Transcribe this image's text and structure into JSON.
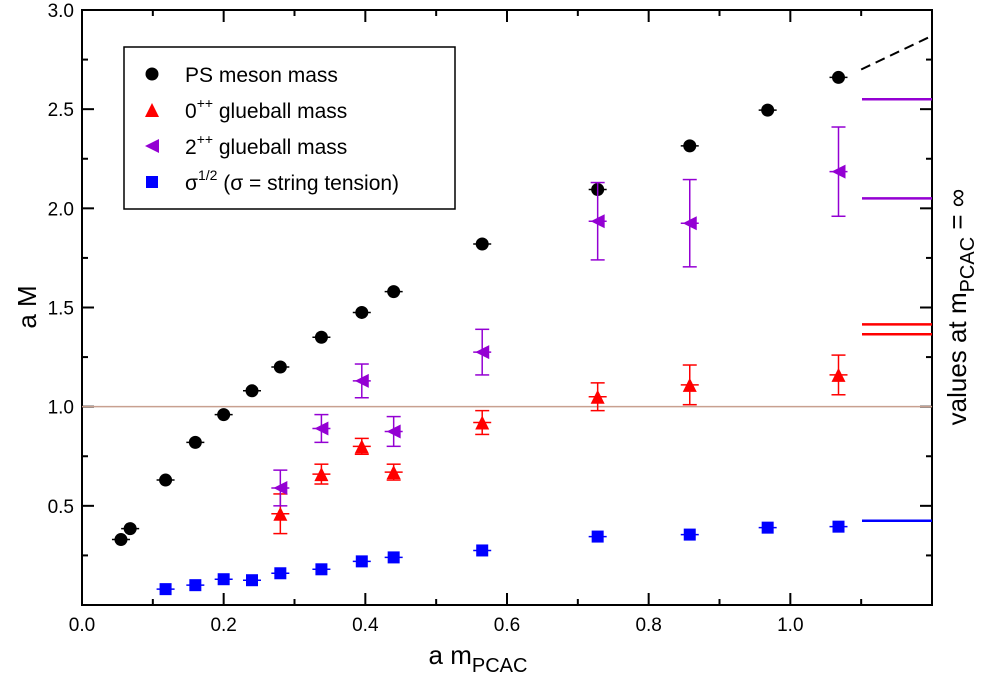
{
  "chart_data": {
    "type": "scatter",
    "xlabel": {
      "main": "a m",
      "sub": "PCAC"
    },
    "ylabel": "a M",
    "right_label": {
      "pre": "values at m",
      "sub": "PCAC",
      "post": " = ∞"
    },
    "xlim": [
      0.0,
      1.2
    ],
    "ylim": [
      0.0,
      3.0
    ],
    "x_ticks": [
      "0.0",
      "0.2",
      "0.4",
      "0.6",
      "0.8",
      "1.0"
    ],
    "y_ticks": [
      "0.5",
      "1.0",
      "1.5",
      "2.0",
      "2.5",
      "3.0"
    ],
    "reference_line_y": 1.0,
    "series": [
      {
        "name": "PS meson mass",
        "marker": "circle",
        "color": "#000000",
        "points": [
          {
            "x": 0.055,
            "y": 0.33
          },
          {
            "x": 0.068,
            "y": 0.385
          },
          {
            "x": 0.118,
            "y": 0.63
          },
          {
            "x": 0.16,
            "y": 0.82
          },
          {
            "x": 0.2,
            "y": 0.96
          },
          {
            "x": 0.24,
            "y": 1.08
          },
          {
            "x": 0.28,
            "y": 1.2
          },
          {
            "x": 0.338,
            "y": 1.35
          },
          {
            "x": 0.395,
            "y": 1.475
          },
          {
            "x": 0.44,
            "y": 1.58
          },
          {
            "x": 0.565,
            "y": 1.82
          },
          {
            "x": 0.728,
            "y": 2.095
          },
          {
            "x": 0.858,
            "y": 2.315
          },
          {
            "x": 0.968,
            "y": 2.495
          },
          {
            "x": 1.068,
            "y": 2.66
          }
        ],
        "extrapolation": [
          [
            1.1,
            2.7
          ],
          [
            1.2,
            2.87
          ]
        ]
      },
      {
        "name": "0^{++} glueball mass",
        "legend": {
          "base": "0",
          "sup": "++",
          "rest": " glueball mass"
        },
        "marker": "triangle-up",
        "color": "#ff0000",
        "points": [
          {
            "x": 0.28,
            "y": 0.46,
            "err": 0.1
          },
          {
            "x": 0.338,
            "y": 0.66,
            "err": 0.05
          },
          {
            "x": 0.395,
            "y": 0.8,
            "err": 0.04
          },
          {
            "x": 0.44,
            "y": 0.67,
            "err": 0.04
          },
          {
            "x": 0.565,
            "y": 0.92,
            "err": 0.06
          },
          {
            "x": 0.728,
            "y": 1.05,
            "err": 0.07
          },
          {
            "x": 0.858,
            "y": 1.11,
            "err": 0.1
          },
          {
            "x": 1.068,
            "y": 1.16,
            "err": 0.1
          }
        ],
        "infinite_mass_values": [
          1.415,
          1.365
        ]
      },
      {
        "name": "2^{++} glueball mass",
        "legend": {
          "base": "2",
          "sup": "++",
          "rest": " glueball mass"
        },
        "marker": "triangle-left",
        "color": "#9400d3",
        "points": [
          {
            "x": 0.28,
            "y": 0.59,
            "err": 0.09
          },
          {
            "x": 0.338,
            "y": 0.89,
            "err": 0.07
          },
          {
            "x": 0.395,
            "y": 1.13,
            "err": 0.085
          },
          {
            "x": 0.44,
            "y": 0.875,
            "err": 0.075
          },
          {
            "x": 0.565,
            "y": 1.275,
            "err": 0.115
          },
          {
            "x": 0.728,
            "y": 1.935,
            "err": 0.195
          },
          {
            "x": 0.858,
            "y": 1.925,
            "err": 0.22
          },
          {
            "x": 1.068,
            "y": 2.185,
            "err": 0.225
          }
        ],
        "infinite_mass_values": [
          2.55,
          2.05
        ]
      },
      {
        "name": "σ^{1/2} (σ = string tension)",
        "legend": {
          "base": "σ",
          "sup": "1/2",
          "rest": " (σ = string tension)"
        },
        "marker": "square",
        "color": "#0000ff",
        "points": [
          {
            "x": 0.118,
            "y": 0.08
          },
          {
            "x": 0.16,
            "y": 0.1
          },
          {
            "x": 0.2,
            "y": 0.13
          },
          {
            "x": 0.24,
            "y": 0.125
          },
          {
            "x": 0.28,
            "y": 0.16
          },
          {
            "x": 0.338,
            "y": 0.18
          },
          {
            "x": 0.395,
            "y": 0.22
          },
          {
            "x": 0.44,
            "y": 0.24
          },
          {
            "x": 0.565,
            "y": 0.275
          },
          {
            "x": 0.728,
            "y": 0.345
          },
          {
            "x": 0.858,
            "y": 0.355
          },
          {
            "x": 0.968,
            "y": 0.39
          },
          {
            "x": 1.068,
            "y": 0.395
          }
        ],
        "infinite_mass_values": [
          0.425
        ]
      }
    ]
  }
}
